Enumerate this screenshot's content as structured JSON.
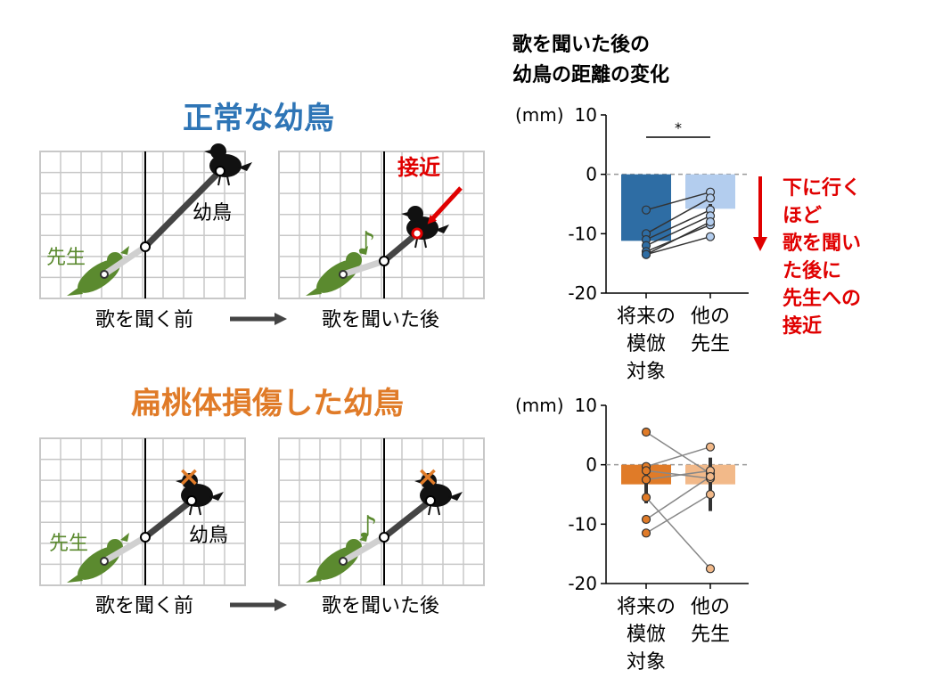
{
  "colors": {
    "normal_title": "#2e75b6",
    "lesion_title": "#e07b28",
    "teacher": "#5b8a2f",
    "grid": "#c8c8c8",
    "approach": "#e00000",
    "blue_dark": "#2e6da4",
    "blue_light": "#b3cdee",
    "orange_dark": "#e07b28",
    "orange_light": "#f2b989"
  },
  "normal": {
    "title": "正常な幼鳥",
    "teacher_label": "先生",
    "juvenile_label": "幼鳥",
    "approach_label": "接近",
    "before_label": "歌を聞く前",
    "after_label": "歌を聞いた後",
    "note": "♪"
  },
  "lesion": {
    "title": "扁桃体損傷した幼鳥",
    "teacher_label": "先生",
    "juvenile_label": "幼鳥",
    "before_label": "歌を聞く前",
    "after_label": "歌を聞いた後",
    "note": "♪",
    "lesion_mark": "×"
  },
  "chart_header": {
    "line1": "歌を聞いた後の",
    "line2": "幼鳥の距離の変化"
  },
  "annotation": {
    "lines": [
      "下に行く",
      "ほど",
      "歌を聞い",
      "た後に",
      "先生への",
      "接近"
    ]
  },
  "chart_data": [
    {
      "type": "bar",
      "unit_label": "(mm)",
      "ylim": [
        -20,
        10
      ],
      "yticks": [
        "10",
        "0",
        "-10",
        "-20"
      ],
      "categories": [
        [
          "将来の",
          "模倣",
          "対象"
        ],
        [
          "他の",
          "先生"
        ]
      ],
      "values": [
        -11.2,
        -5.8
      ],
      "errors": [
        0.8,
        0.8
      ],
      "significance": "*",
      "pairs": [
        [
          -6,
          -3
        ],
        [
          -10,
          -4
        ],
        [
          -11,
          -6
        ],
        [
          -12,
          -7
        ],
        [
          -13,
          -8.5
        ],
        [
          -13.5,
          -8
        ],
        [
          -13.5,
          -10.5
        ]
      ]
    },
    {
      "type": "bar",
      "unit_label": "(mm)",
      "ylim": [
        -20,
        10
      ],
      "yticks": [
        "10",
        "0",
        "-10",
        "-20"
      ],
      "categories": [
        [
          "将来の",
          "模倣",
          "対象"
        ],
        [
          "他の",
          "先生"
        ]
      ],
      "values": [
        -3.3,
        -3.3
      ],
      "errors": [
        3.2,
        4.5
      ],
      "pairs": [
        [
          5.5,
          -1.5
        ],
        [
          -0.3,
          3
        ],
        [
          -1,
          -2.3
        ],
        [
          -2.5,
          -1
        ],
        [
          -5.5,
          -17.5
        ],
        [
          -9.2,
          -2
        ],
        [
          -11.5,
          -5
        ]
      ]
    }
  ]
}
